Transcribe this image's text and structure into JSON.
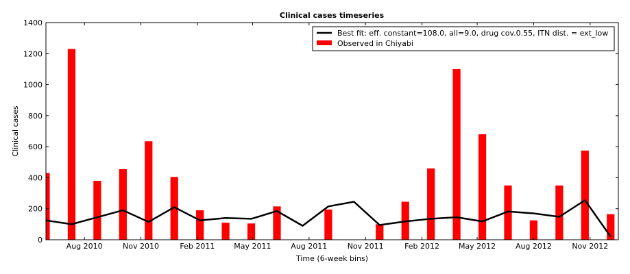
{
  "chart_data": {
    "type": "bar",
    "title": "Clinical cases timeseries",
    "xlabel": "Time (6-week bins)",
    "ylabel": "Clinical cases",
    "ylim": [
      0,
      1400
    ],
    "yticks": [
      0,
      200,
      400,
      600,
      800,
      1000,
      1200,
      1400
    ],
    "xlim": [
      0,
      22.3
    ],
    "xticks": [
      {
        "label": "Aug 2010",
        "pos": 1.5
      },
      {
        "label": "Nov 2010",
        "pos": 3.7
      },
      {
        "label": "Feb 2011",
        "pos": 5.9
      },
      {
        "label": "May 2011",
        "pos": 8.05
      },
      {
        "label": "Aug 2011",
        "pos": 10.25
      },
      {
        "label": "Nov 2011",
        "pos": 12.45
      },
      {
        "label": "Feb 2012",
        "pos": 14.65
      },
      {
        "label": "May 2012",
        "pos": 16.8
      },
      {
        "label": "Aug 2012",
        "pos": 19.0
      },
      {
        "label": "Nov 2012",
        "pos": 21.2
      }
    ],
    "legend_position": "top-right",
    "series": [
      {
        "name": "Best fit: eff. constant=108.0, all=9.0, drug cov.0.55, ITN dist. = ext_low",
        "kind": "line",
        "color": "#000000",
        "x": [
          0,
          1,
          2,
          3,
          4,
          5,
          6,
          7,
          8,
          9,
          10,
          11,
          12,
          13,
          14,
          15,
          16,
          17,
          18,
          19,
          20,
          21,
          22
        ],
        "values": [
          125,
          100,
          145,
          190,
          115,
          210,
          125,
          140,
          135,
          185,
          90,
          215,
          245,
          95,
          118,
          135,
          145,
          118,
          182,
          170,
          148,
          255,
          20
        ]
      },
      {
        "name": "Observed in Chiyabi",
        "kind": "bar",
        "color": "#ff0000",
        "x": [
          0,
          1,
          2,
          3,
          4,
          5,
          6,
          7,
          8,
          9,
          10,
          11,
          12,
          13,
          14,
          15,
          16,
          17,
          18,
          19,
          20,
          21,
          22
        ],
        "values": [
          430,
          1230,
          380,
          455,
          635,
          405,
          190,
          110,
          105,
          215,
          0,
          195,
          0,
          100,
          245,
          460,
          1100,
          680,
          350,
          125,
          350,
          575,
          165
        ]
      }
    ]
  }
}
